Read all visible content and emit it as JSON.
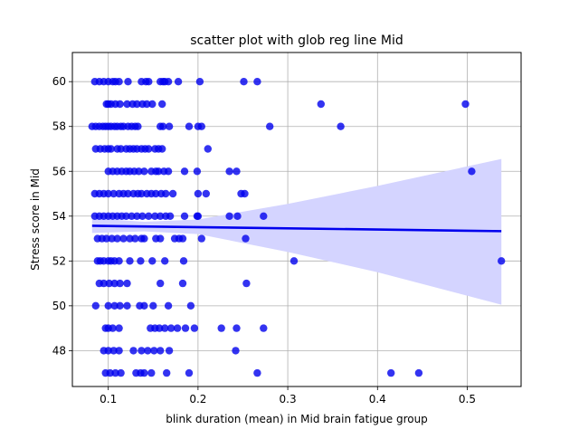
{
  "chart_data": {
    "type": "scatter",
    "title": "scatter plot with glob reg line Mid",
    "xlabel": "blink duration (mean) in Mid brain fatigue group",
    "ylabel": "Stress score in Mid",
    "xlim": [
      0.06,
      0.56
    ],
    "ylim": [
      46.4,
      61.3
    ],
    "xticks": [
      0.1,
      0.2,
      0.3,
      0.4,
      0.5
    ],
    "xtick_labels": [
      "0.1",
      "0.2",
      "0.3",
      "0.4",
      "0.5"
    ],
    "yticks": [
      48,
      50,
      52,
      54,
      56,
      58,
      60
    ],
    "ytick_labels": [
      "48",
      "50",
      "52",
      "54",
      "56",
      "58",
      "60"
    ],
    "grid": true,
    "legend": "none",
    "colors": {
      "points": "#0000ee",
      "regression_line": "#0000ee",
      "confidence_band": "#d4d4ff",
      "grid": "#b0b0b0"
    },
    "series": [
      {
        "points": [
          [
            0.085,
            60
          ],
          [
            0.09,
            60
          ],
          [
            0.095,
            60
          ],
          [
            0.1,
            60
          ],
          [
            0.105,
            60
          ],
          [
            0.108,
            60
          ],
          [
            0.112,
            60
          ],
          [
            0.122,
            60
          ],
          [
            0.137,
            60
          ],
          [
            0.142,
            60
          ],
          [
            0.145,
            60
          ],
          [
            0.158,
            60
          ],
          [
            0.161,
            60
          ],
          [
            0.163,
            60
          ],
          [
            0.167,
            60
          ],
          [
            0.178,
            60
          ],
          [
            0.202,
            60
          ],
          [
            0.251,
            60
          ],
          [
            0.266,
            60
          ],
          [
            0.098,
            59
          ],
          [
            0.1,
            59
          ],
          [
            0.103,
            59
          ],
          [
            0.108,
            59
          ],
          [
            0.113,
            59
          ],
          [
            0.121,
            59
          ],
          [
            0.127,
            59
          ],
          [
            0.132,
            59
          ],
          [
            0.138,
            59
          ],
          [
            0.143,
            59
          ],
          [
            0.149,
            59
          ],
          [
            0.16,
            59
          ],
          [
            0.337,
            59
          ],
          [
            0.498,
            59
          ],
          [
            0.082,
            58
          ],
          [
            0.086,
            58
          ],
          [
            0.09,
            58
          ],
          [
            0.094,
            58
          ],
          [
            0.097,
            58
          ],
          [
            0.1,
            58
          ],
          [
            0.103,
            58
          ],
          [
            0.107,
            58
          ],
          [
            0.11,
            58
          ],
          [
            0.114,
            58
          ],
          [
            0.117,
            58
          ],
          [
            0.122,
            58
          ],
          [
            0.126,
            58
          ],
          [
            0.13,
            58
          ],
          [
            0.133,
            58
          ],
          [
            0.158,
            58
          ],
          [
            0.161,
            58
          ],
          [
            0.168,
            58
          ],
          [
            0.19,
            58
          ],
          [
            0.2,
            58
          ],
          [
            0.204,
            58
          ],
          [
            0.28,
            58
          ],
          [
            0.359,
            58
          ],
          [
            0.086,
            57
          ],
          [
            0.091,
            57
          ],
          [
            0.096,
            57
          ],
          [
            0.1,
            57
          ],
          [
            0.103,
            57
          ],
          [
            0.11,
            57
          ],
          [
            0.114,
            57
          ],
          [
            0.12,
            57
          ],
          [
            0.124,
            57
          ],
          [
            0.128,
            57
          ],
          [
            0.132,
            57
          ],
          [
            0.137,
            57
          ],
          [
            0.141,
            57
          ],
          [
            0.145,
            57
          ],
          [
            0.152,
            57
          ],
          [
            0.156,
            57
          ],
          [
            0.16,
            57
          ],
          [
            0.211,
            57
          ],
          [
            0.1,
            56
          ],
          [
            0.105,
            56
          ],
          [
            0.11,
            56
          ],
          [
            0.115,
            56
          ],
          [
            0.12,
            56
          ],
          [
            0.124,
            56
          ],
          [
            0.129,
            56
          ],
          [
            0.134,
            56
          ],
          [
            0.14,
            56
          ],
          [
            0.148,
            56
          ],
          [
            0.153,
            56
          ],
          [
            0.156,
            56
          ],
          [
            0.162,
            56
          ],
          [
            0.167,
            56
          ],
          [
            0.185,
            56
          ],
          [
            0.199,
            56
          ],
          [
            0.235,
            56
          ],
          [
            0.243,
            56
          ],
          [
            0.505,
            56
          ],
          [
            0.085,
            55
          ],
          [
            0.09,
            55
          ],
          [
            0.095,
            55
          ],
          [
            0.1,
            55
          ],
          [
            0.106,
            55
          ],
          [
            0.112,
            55
          ],
          [
            0.117,
            55
          ],
          [
            0.122,
            55
          ],
          [
            0.128,
            55
          ],
          [
            0.133,
            55
          ],
          [
            0.137,
            55
          ],
          [
            0.143,
            55
          ],
          [
            0.148,
            55
          ],
          [
            0.153,
            55
          ],
          [
            0.159,
            55
          ],
          [
            0.164,
            55
          ],
          [
            0.172,
            55
          ],
          [
            0.2,
            55
          ],
          [
            0.209,
            55
          ],
          [
            0.248,
            55
          ],
          [
            0.252,
            55
          ],
          [
            0.085,
            54
          ],
          [
            0.09,
            54
          ],
          [
            0.095,
            54
          ],
          [
            0.1,
            54
          ],
          [
            0.105,
            54
          ],
          [
            0.11,
            54
          ],
          [
            0.115,
            54
          ],
          [
            0.12,
            54
          ],
          [
            0.126,
            54
          ],
          [
            0.132,
            54
          ],
          [
            0.138,
            54
          ],
          [
            0.145,
            54
          ],
          [
            0.152,
            54
          ],
          [
            0.158,
            54
          ],
          [
            0.164,
            54
          ],
          [
            0.169,
            54
          ],
          [
            0.185,
            54
          ],
          [
            0.199,
            54
          ],
          [
            0.2,
            54
          ],
          [
            0.235,
            54
          ],
          [
            0.244,
            54
          ],
          [
            0.273,
            54
          ],
          [
            0.088,
            53
          ],
          [
            0.093,
            53
          ],
          [
            0.098,
            53
          ],
          [
            0.104,
            53
          ],
          [
            0.11,
            53
          ],
          [
            0.117,
            53
          ],
          [
            0.124,
            53
          ],
          [
            0.13,
            53
          ],
          [
            0.137,
            53
          ],
          [
            0.14,
            53
          ],
          [
            0.153,
            53
          ],
          [
            0.158,
            53
          ],
          [
            0.174,
            53
          ],
          [
            0.179,
            53
          ],
          [
            0.183,
            53
          ],
          [
            0.204,
            53
          ],
          [
            0.253,
            53
          ],
          [
            0.088,
            52
          ],
          [
            0.091,
            52
          ],
          [
            0.095,
            52
          ],
          [
            0.1,
            52
          ],
          [
            0.103,
            52
          ],
          [
            0.107,
            52
          ],
          [
            0.112,
            52
          ],
          [
            0.124,
            52
          ],
          [
            0.136,
            52
          ],
          [
            0.149,
            52
          ],
          [
            0.163,
            52
          ],
          [
            0.184,
            52
          ],
          [
            0.307,
            52
          ],
          [
            0.538,
            52
          ],
          [
            0.09,
            51
          ],
          [
            0.095,
            51
          ],
          [
            0.101,
            51
          ],
          [
            0.107,
            51
          ],
          [
            0.113,
            51
          ],
          [
            0.121,
            51
          ],
          [
            0.158,
            51
          ],
          [
            0.183,
            51
          ],
          [
            0.254,
            51
          ],
          [
            0.086,
            50
          ],
          [
            0.1,
            50
          ],
          [
            0.107,
            50
          ],
          [
            0.113,
            50
          ],
          [
            0.121,
            50
          ],
          [
            0.135,
            50
          ],
          [
            0.14,
            50
          ],
          [
            0.15,
            50
          ],
          [
            0.167,
            50
          ],
          [
            0.192,
            50
          ],
          [
            0.097,
            49
          ],
          [
            0.1,
            49
          ],
          [
            0.105,
            49
          ],
          [
            0.112,
            49
          ],
          [
            0.147,
            49
          ],
          [
            0.152,
            49
          ],
          [
            0.157,
            49
          ],
          [
            0.163,
            49
          ],
          [
            0.17,
            49
          ],
          [
            0.177,
            49
          ],
          [
            0.186,
            49
          ],
          [
            0.196,
            49
          ],
          [
            0.226,
            49
          ],
          [
            0.243,
            49
          ],
          [
            0.273,
            49
          ],
          [
            0.095,
            48
          ],
          [
            0.1,
            48
          ],
          [
            0.106,
            48
          ],
          [
            0.112,
            48
          ],
          [
            0.128,
            48
          ],
          [
            0.137,
            48
          ],
          [
            0.144,
            48
          ],
          [
            0.151,
            48
          ],
          [
            0.158,
            48
          ],
          [
            0.168,
            48
          ],
          [
            0.242,
            48
          ],
          [
            0.097,
            47
          ],
          [
            0.102,
            47
          ],
          [
            0.108,
            47
          ],
          [
            0.114,
            47
          ],
          [
            0.131,
            47
          ],
          [
            0.136,
            47
          ],
          [
            0.14,
            47
          ],
          [
            0.148,
            47
          ],
          [
            0.165,
            47
          ],
          [
            0.19,
            47
          ],
          [
            0.266,
            47
          ],
          [
            0.415,
            47
          ],
          [
            0.446,
            47
          ]
        ]
      }
    ],
    "regression_line": {
      "x": [
        0.082,
        0.538
      ],
      "y": [
        53.57,
        53.33
      ]
    },
    "confidence_band": {
      "x": [
        0.082,
        0.14,
        0.2,
        0.3,
        0.4,
        0.538
      ],
      "upper": [
        53.9,
        53.75,
        53.85,
        54.55,
        55.35,
        56.55
      ],
      "lower": [
        53.25,
        53.32,
        53.2,
        52.4,
        51.5,
        50.05
      ]
    }
  }
}
